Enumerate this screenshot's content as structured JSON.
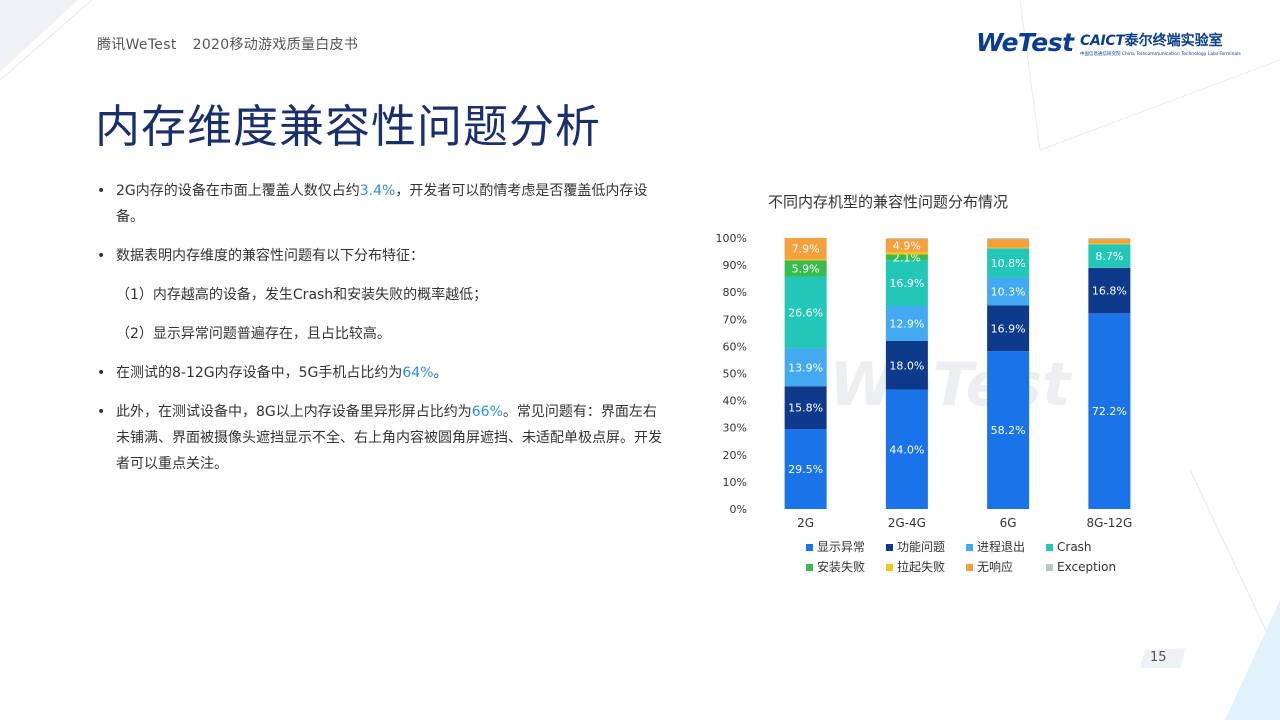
{
  "header": {
    "left_brand": "腾讯WeTest",
    "left_doc": "2020移动游戏质量白皮书",
    "logo_wetest": "WeTest",
    "logo_caict_mark": "CAICT",
    "logo_caict_name": "泰尔终端实验室",
    "logo_caict_sub": "中国信息通信研究院 China Telecommunication Technology Labs-Terminals"
  },
  "page_title": "内存维度兼容性问题分析",
  "bullets": {
    "b1_pre": "2G内存的设备在市面上覆盖人数仅占约",
    "b1_hl": "3.4%",
    "b1_post": "，开发者可以酌情考虑是否覆盖低内存设备。",
    "b2": "数据表明内存维度的兼容性问题有以下分布特征：",
    "sub1": "（1）内存越高的设备，发生Crash和安装失败的概率越低；",
    "sub2": "（2）显示异常问题普遍存在，且占比较高。",
    "b3_pre": "在测试的8-12G内存设备中，5G手机占比约为",
    "b3_hl": "64%",
    "b3_post": "。",
    "b4_pre": "此外，在测试设备中，8G以上内存设备里异形屏占比约为",
    "b4_hl": "66%",
    "b4_post1": "。常见问题有：界面左右",
    "b4_line2": "未铺满、界面被摄像头遮挡显示不全、右上角内容被圆角屏遮挡、未适配单极点屏。开发",
    "b4_line3": "者可以重点关注。"
  },
  "page_number": "15",
  "chart_data": {
    "type": "bar",
    "stacked": true,
    "title": "不同内存机型的兼容性问题分布情况",
    "categories": [
      "2G",
      "2G-4G",
      "6G",
      "8G-12G"
    ],
    "ylim": [
      0,
      100
    ],
    "y_ticks": [
      "0%",
      "10%",
      "20%",
      "30%",
      "40%",
      "50%",
      "60%",
      "70%",
      "80%",
      "90%",
      "100%"
    ],
    "legend_position": "bottom",
    "watermark": "WeTest",
    "series": [
      {
        "name": "显示异常",
        "color": "#1a73e8",
        "values": [
          29.5,
          44.0,
          58.2,
          72.2
        ],
        "labels": [
          "29.5%",
          "44.0%",
          "58.2%",
          "72.2%"
        ]
      },
      {
        "name": "功能问题",
        "color": "#0d3a8a",
        "values": [
          15.8,
          18.0,
          16.9,
          16.8
        ],
        "labels": [
          "15.8%",
          "18.0%",
          "16.9%",
          "16.8%"
        ]
      },
      {
        "name": "进程退出",
        "color": "#43a9f0",
        "values": [
          13.9,
          12.9,
          10.3,
          0
        ],
        "labels": [
          "13.9%",
          "12.9%",
          "10.3%",
          ""
        ]
      },
      {
        "name": "Crash",
        "color": "#22c7b8",
        "values": [
          26.6,
          16.9,
          10.8,
          8.7
        ],
        "labels": [
          "26.6%",
          "16.9%",
          "10.8%",
          "8.7%"
        ]
      },
      {
        "name": "安装失败",
        "color": "#37bd4e",
        "values": [
          5.9,
          2.1,
          0,
          0
        ],
        "labels": [
          "5.9%",
          "2.1%",
          "",
          ""
        ]
      },
      {
        "name": "拉起失败",
        "color": "#f5c518",
        "values": [
          0.4,
          0.9,
          0.3,
          0.3
        ],
        "labels": [
          "",
          "",
          "",
          ""
        ]
      },
      {
        "name": "无响应",
        "color": "#f5a03c",
        "values": [
          7.9,
          4.9,
          3.1,
          1.7
        ],
        "labels": [
          "7.9%",
          "4.9%",
          "",
          ""
        ]
      },
      {
        "name": "Exception",
        "color": "#bfc5cf",
        "values": [
          0.0,
          0.3,
          0.4,
          0.3
        ],
        "labels": [
          "",
          "",
          "",
          ""
        ]
      }
    ]
  }
}
